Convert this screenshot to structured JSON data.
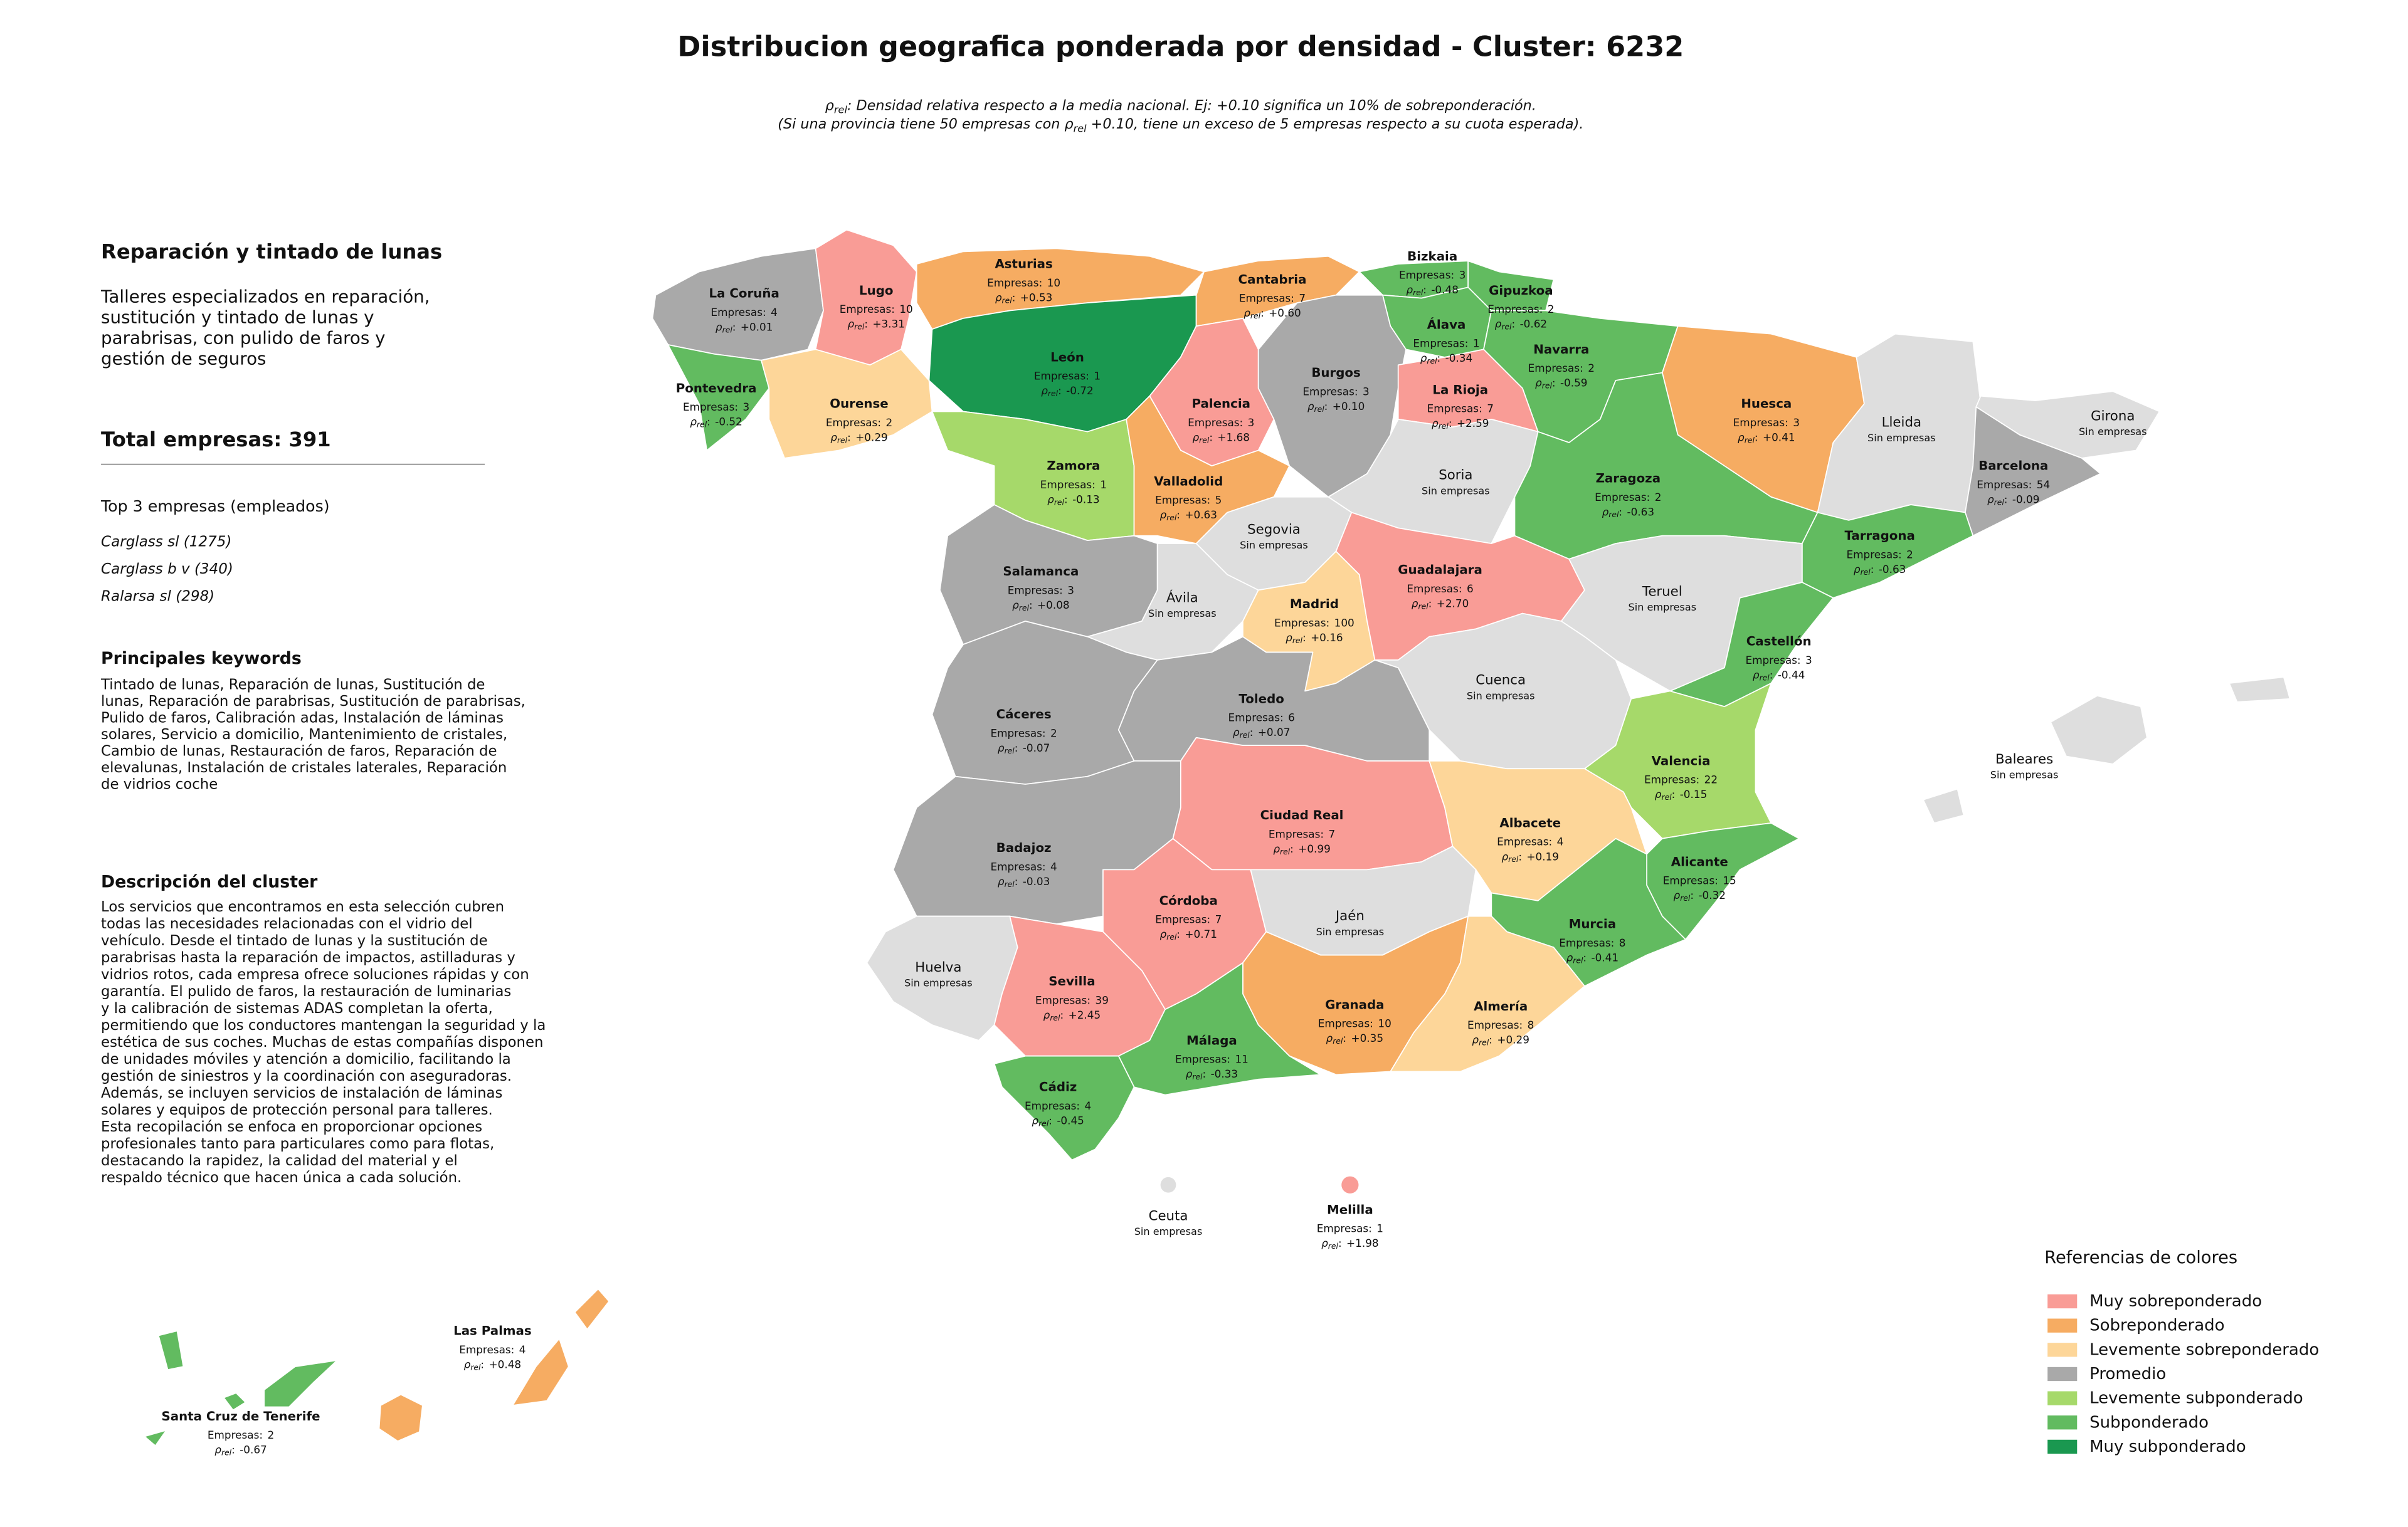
{
  "header": {
    "title": "Distribucion geografica ponderada por densidad - Cluster: 6232",
    "subtitle": [
      {
        "symbol": "ρ",
        "subscript": "rel",
        "text": ": Densidad relativa respecto a la media nacional. Ej: +0.10 significa un 10% de sobreponderación."
      },
      {
        "text": "(Si una provincia tiene 50 empresas con ",
        "symbol": "ρ",
        "subscript": "rel",
        "after": " +0.10, tiene un exceso de 5 empresas respecto a su cuota esperada)."
      }
    ]
  },
  "sidebar": {
    "heading": "Reparación y tintado de lunas",
    "summary": [
      "Talleres especializados en reparación,",
      "sustitución y tintado de lunas y",
      "parabrisas, con pulido de faros y",
      "gestión de seguros"
    ],
    "total": "Total empresas: 391",
    "top_heading": "Top 3 empresas (empleados)",
    "top_companies": [
      "Carglass sl (1275)",
      "Carglass b v (340)",
      "Ralarsa sl (298)"
    ],
    "keywords_heading": "Principales keywords",
    "keywords": [
      "Tintado de lunas, Reparación de lunas, Sustitución de",
      "lunas, Reparación de parabrisas, Sustitución de parabrisas,",
      "Pulido de faros, Calibración adas, Instalación de láminas",
      "solares, Servicio a domicilio, Mantenimiento de cristales,",
      "Cambio de lunas, Restauración de faros, Reparación de",
      "elevalunas, Instalación de cristales laterales, Reparación",
      "de vidrios coche"
    ],
    "description_heading": "Descripción del cluster",
    "description": [
      "Los servicios que encontramos en esta selección cubren",
      "todas las necesidades relacionadas con el vidrio del",
      "vehículo. Desde el tintado de lunas y la sustitución de",
      "parabrisas hasta la reparación de impactos, astilladuras y",
      "vidrios rotos, cada empresa ofrece soluciones rápidas y con",
      "garantía. El pulido de faros, la restauración de luminarias",
      "y la calibración de sistemas ADAS completan la oferta,",
      "permitiendo que los conductores mantengan la seguridad y la",
      "estética de sus coches. Muchas de estas compañías disponen",
      "de unidades móviles y atención a domicilio, facilitando la",
      "gestión de siniestros y la coordinación con aseguradoras.",
      "Además, se incluyen servicios de instalación de láminas",
      "solares y equipos de protección personal para talleres.",
      "Esta recopilación se enfoca en proporcionar opciones",
      "profesionales tanto para particulares como para flotas,",
      "destacando la rapidez, la calidad del material y el",
      "respaldo técnico que hacen única a cada solución."
    ]
  },
  "map": {
    "companies_label": "Empresas:",
    "rho_symbol": "ρ",
    "rho_subscript": "rel",
    "rho_colon": ":",
    "no_data_label": "Sin empresas",
    "no_data_color": "#dedede",
    "provinces": [
      {
        "name": "La Coruña",
        "category": "Promedio",
        "companies": 4,
        "rho": {
          "value": 0.01,
          "label": "+0.01"
        }
      },
      {
        "name": "Lugo",
        "category": "Muy sobreponderado",
        "companies": 10,
        "rho": {
          "value": 3.31,
          "label": "+3.31"
        }
      },
      {
        "name": "Asturias",
        "category": "Sobreponderado",
        "companies": 10,
        "rho": {
          "value": 0.53,
          "label": "+0.53"
        }
      },
      {
        "name": "León",
        "category": "Muy subponderado",
        "companies": 1,
        "rho": -0.72
      },
      {
        "name": "Cantabria",
        "category": "Sobreponderado",
        "companies": 7,
        "rho": {
          "value": 0.6,
          "label": "+0.60"
        }
      },
      {
        "name": "Bizkaia",
        "category": "Subponderado",
        "companies": 3,
        "rho": -0.48
      },
      {
        "name": "Gipuzkoa",
        "category": "Subponderado",
        "companies": 2,
        "rho": -0.62
      },
      {
        "name": "Álava",
        "category": "Subponderado",
        "companies": 1,
        "rho": -0.34
      },
      {
        "name": "Navarra",
        "category": "Subponderado",
        "companies": 2,
        "rho": -0.59
      },
      {
        "name": "Pontevedra",
        "category": "Subponderado",
        "companies": 3,
        "rho": -0.52
      },
      {
        "name": "Ourense",
        "category": "Levemente sobreponderado",
        "companies": 2,
        "rho": {
          "value": 0.29,
          "label": "+0.29"
        }
      },
      {
        "name": "Palencia",
        "category": "Muy sobreponderado",
        "companies": 3,
        "rho": {
          "value": 1.68,
          "label": "+1.68"
        }
      },
      {
        "name": "Burgos",
        "category": "Promedio",
        "companies": 3,
        "rho": {
          "value": 0.1,
          "label": "+0.10"
        }
      },
      {
        "name": "La Rioja",
        "category": "Muy sobreponderado",
        "companies": 7,
        "rho": {
          "value": 2.59,
          "label": "+2.59"
        }
      },
      {
        "name": "Huesca",
        "category": "Sobreponderado",
        "companies": 3,
        "rho": {
          "value": 0.41,
          "label": "+0.41"
        }
      },
      {
        "name": "Lleida"
      },
      {
        "name": "Girona"
      },
      {
        "name": "Barcelona",
        "category": "Promedio",
        "companies": 54,
        "rho": -0.09
      },
      {
        "name": "Zamora",
        "category": "Levemente subponderado",
        "companies": 1,
        "rho": -0.13
      },
      {
        "name": "Valladolid",
        "category": "Sobreponderado",
        "companies": 5,
        "rho": {
          "value": 0.63,
          "label": "+0.63"
        }
      },
      {
        "name": "Soria"
      },
      {
        "name": "Zaragoza",
        "category": "Subponderado",
        "companies": 2,
        "rho": -0.63
      },
      {
        "name": "Tarragona",
        "category": "Subponderado",
        "companies": 2,
        "rho": -0.63
      },
      {
        "name": "Salamanca",
        "category": "Promedio",
        "companies": 3,
        "rho": {
          "value": 0.08,
          "label": "+0.08"
        }
      },
      {
        "name": "Segovia"
      },
      {
        "name": "Ávila"
      },
      {
        "name": "Madrid",
        "category": "Levemente sobreponderado",
        "companies": 100,
        "rho": {
          "value": 0.16,
          "label": "+0.16"
        }
      },
      {
        "name": "Guadalajara",
        "category": "Muy sobreponderado",
        "companies": 6,
        "rho": {
          "value": 2.7,
          "label": "+2.70"
        }
      },
      {
        "name": "Teruel"
      },
      {
        "name": "Cuenca"
      },
      {
        "name": "Castellón",
        "category": "Subponderado",
        "companies": 3,
        "rho": -0.44
      },
      {
        "name": "Cáceres",
        "category": "Promedio",
        "companies": 2,
        "rho": -0.07
      },
      {
        "name": "Toledo",
        "category": "Promedio",
        "companies": 6,
        "rho": {
          "value": 0.07,
          "label": "+0.07"
        }
      },
      {
        "name": "Valencia",
        "category": "Levemente subponderado",
        "companies": 22,
        "rho": -0.15
      },
      {
        "name": "Badajoz",
        "category": "Promedio",
        "companies": 4,
        "rho": -0.03
      },
      {
        "name": "Ciudad Real",
        "category": "Muy sobreponderado",
        "companies": 7,
        "rho": {
          "value": 0.99,
          "label": "+0.99"
        }
      },
      {
        "name": "Albacete",
        "category": "Levemente sobreponderado",
        "companies": 4,
        "rho": {
          "value": 0.19,
          "label": "+0.19"
        }
      },
      {
        "name": "Alicante",
        "category": "Subponderado",
        "companies": 15,
        "rho": -0.32
      },
      {
        "name": "Huelva"
      },
      {
        "name": "Córdoba",
        "category": "Muy sobreponderado",
        "companies": 7,
        "rho": {
          "value": 0.71,
          "label": "+0.71"
        }
      },
      {
        "name": "Jaén"
      },
      {
        "name": "Murcia",
        "category": "Subponderado",
        "companies": 8,
        "rho": -0.41
      },
      {
        "name": "Sevilla",
        "category": "Muy sobreponderado",
        "companies": 39,
        "rho": {
          "value": 2.45,
          "label": "+2.45"
        }
      },
      {
        "name": "Granada",
        "category": "Sobreponderado",
        "companies": 10,
        "rho": {
          "value": 0.35,
          "label": "+0.35"
        }
      },
      {
        "name": "Almería",
        "category": "Levemente sobreponderado",
        "companies": 8,
        "rho": {
          "value": 0.29,
          "label": "+0.29"
        }
      },
      {
        "name": "Málaga",
        "category": "Subponderado",
        "companies": 11,
        "rho": -0.33
      },
      {
        "name": "Cádiz",
        "category": "Subponderado",
        "companies": 4,
        "rho": -0.45
      },
      {
        "name": "Baleares"
      },
      {
        "name": "Las Palmas",
        "category": "Sobreponderado",
        "companies": 4,
        "rho": {
          "value": 0.48,
          "label": "+0.48"
        }
      },
      {
        "name": "Santa Cruz de Tenerife",
        "category": "Subponderado",
        "companies": 2,
        "rho": -0.67
      },
      {
        "name": "Ceuta"
      },
      {
        "name": "Melilla",
        "category": "Muy sobreponderado",
        "companies": 1,
        "rho": {
          "value": 1.98,
          "label": "+1.98"
        }
      }
    ]
  },
  "legend": {
    "title": "Referencias de colores",
    "items": [
      {
        "name": "Muy sobreponderado",
        "color": "#f99c96"
      },
      {
        "name": "Sobreponderado",
        "color": "#f6ac62"
      },
      {
        "name": "Levemente sobreponderado",
        "color": "#fdd699"
      },
      {
        "name": "Promedio",
        "color": "#a9a9a9"
      },
      {
        "name": "Levemente subponderado",
        "color": "#a6d96a"
      },
      {
        "name": "Subponderado",
        "color": "#62bb60"
      },
      {
        "name": "Muy subponderado",
        "color": "#1a9850"
      }
    ]
  }
}
